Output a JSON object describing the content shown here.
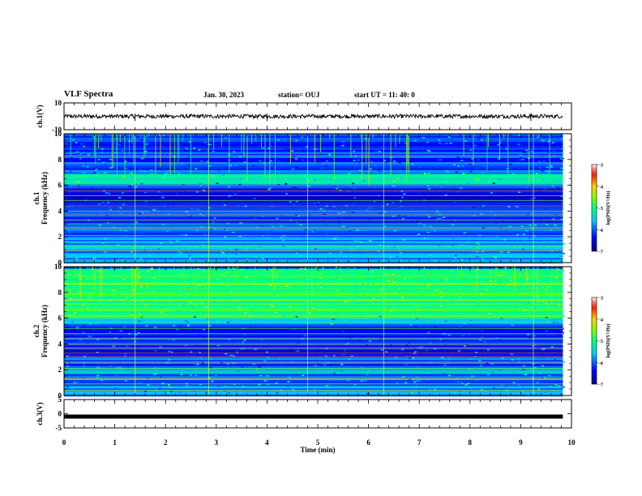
{
  "header": {
    "title": "VLF Spectra",
    "date": "Jan. 30, 2023",
    "station": "station= OUJ",
    "start": "start  UT  =   11: 40: 0"
  },
  "chart_data": [
    {
      "type": "line",
      "panel": "ch.1 waveform",
      "ylabel": "ch.1(V)",
      "ylim": [
        -10,
        10
      ],
      "yticks": [
        "10",
        "-10"
      ],
      "xlim": [
        0,
        10
      ],
      "description_values": {
        "baseline": 0,
        "amplitude_approx": 1.5
      }
    },
    {
      "type": "heatmap",
      "panel": "ch.1 spectrogram",
      "ylabel": "ch.1\nFrequency  (kHz)",
      "ylim": [
        0,
        10
      ],
      "yticks": [
        "0",
        "2",
        "4",
        "6",
        "8",
        "10"
      ],
      "xlim": [
        0,
        10
      ],
      "colorbar": {
        "label": "log(PSD)(V²/Hz)",
        "range": [
          -7,
          -3
        ],
        "ticks": [
          "-3",
          "-4",
          "-5",
          "-6",
          "-7"
        ]
      }
    },
    {
      "type": "heatmap",
      "panel": "ch.2 spectrogram",
      "ylabel": "ch.2\nFrequency  (kHz)",
      "ylim": [
        0,
        10
      ],
      "yticks": [
        "0",
        "2",
        "4",
        "6",
        "8",
        "10"
      ],
      "xlim": [
        0,
        10
      ],
      "colorbar": {
        "label": "log(PSD)(V²/Hz)",
        "range": [
          -7,
          -3
        ],
        "ticks": [
          "-3",
          "-4",
          "-5",
          "-6",
          "-7"
        ]
      }
    },
    {
      "type": "line",
      "panel": "ch.3 waveform",
      "ylabel": "ch.3(V)",
      "ylim": [
        -5,
        5
      ],
      "yticks": [
        "5",
        "0",
        "-5"
      ],
      "xlim": [
        0,
        10
      ],
      "description_values": {
        "baseline": -1.0
      }
    }
  ],
  "xaxis": {
    "label": "Time  (min)",
    "ticks": [
      "0",
      "1",
      "2",
      "3",
      "4",
      "5",
      "6",
      "7",
      "8",
      "9",
      "10"
    ]
  }
}
